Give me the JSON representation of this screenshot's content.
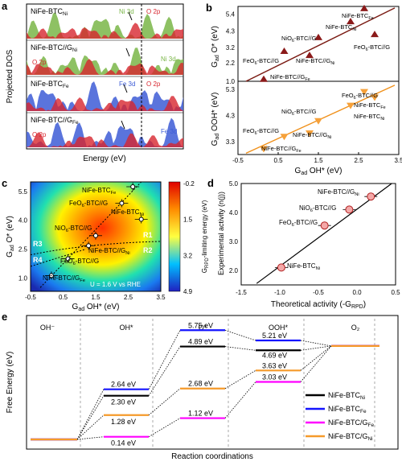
{
  "panels": {
    "a": {
      "letter": "a",
      "ylabel": "Projected DOS",
      "xlabel": "Energy (eV)",
      "rows": [
        {
          "label": "NiFe-BTC",
          "sub": "Ni",
          "tags": [
            {
              "t": "Ni 3d",
              "c": "#7ab648"
            },
            {
              "t": "O 2p",
              "c": "#d7262e"
            }
          ]
        },
        {
          "label": "NiFe-BTC//G",
          "sub": "Ni",
          "tags": [
            {
              "t": "O 2p",
              "c": "#d7262e"
            },
            {
              "t": "Ni 3d",
              "c": "#7ab648"
            }
          ]
        },
        {
          "label": "NiFe-BTC",
          "sub": "Fe",
          "tags": [
            {
              "t": "Fe 3d",
              "c": "#3d5cd6"
            },
            {
              "t": "O 2p",
              "c": "#d7262e"
            }
          ]
        },
        {
          "label": "NiFe-BTC//G",
          "sub": "Fe",
          "tags": [
            {
              "t": "O 2p",
              "c": "#d7262e"
            },
            {
              "t": "Fe 3d",
              "c": "#3d5cd6"
            }
          ]
        }
      ]
    },
    "b": {
      "letter": "b",
      "xlabel": "G",
      "xlabel_sub": "ad",
      "xlabel_tail": " OH* (eV)",
      "ylabel_top": "G",
      "ylabel_top_sub": "ad",
      "ylabel_top_tail": " O* (eV)",
      "ylabel_bot": "G",
      "ylabel_bot_sub": "ad",
      "ylabel_bot_tail": " OOH* (eV)",
      "xticks": [
        "-0.5",
        "0.5",
        "1.5",
        "2.5",
        "3.5"
      ],
      "yticks_top": [
        "1.0",
        "2.2",
        "3.2",
        "4.3",
        "5.4"
      ],
      "yticks_bot": [
        "3.3",
        "4.3",
        "5.3"
      ],
      "labels_top": [
        "NiFe-BTC",
        "Fe",
        "NiFe-BTC",
        "Ni",
        "NiO",
        "6",
        "-BTC//G",
        "FeO",
        "6",
        "-BTC//G",
        "FeO",
        "6",
        "-BTC//G",
        "NiFe-BTC//G",
        "Ni",
        "NiFe-BTC//G",
        "Fe"
      ],
      "top_points": [
        {
          "name": "NiFe-BTC_Fe",
          "x": 2.64,
          "y": 5.75
        },
        {
          "name": "NiFe-BTC_Ni",
          "x": 2.3,
          "y": 4.89
        },
        {
          "name": "FeO6-BTC//G",
          "x": 2.9,
          "y": 4.05
        },
        {
          "name": "NiO6-BTC//G",
          "x": 1.5,
          "y": 3.85
        },
        {
          "name": "FeO6-BTC//G",
          "x": 0.65,
          "y": 2.95
        },
        {
          "name": "NiFe-BTC//G_Ni",
          "x": 1.28,
          "y": 2.68
        },
        {
          "name": "NiFe-BTC//G_Fe",
          "x": 0.14,
          "y": 1.12
        }
      ],
      "bot_points": [
        {
          "name": "NiFe-BTC//G_Fe",
          "x": 0.14,
          "y": 3.03
        },
        {
          "name": "FeO6-BTC//G",
          "x": 0.65,
          "y": 3.5
        },
        {
          "name": "NiFe-BTC//G_Ni",
          "x": 1.28,
          "y": 3.63
        },
        {
          "name": "NiO6-BTC//G",
          "x": 1.5,
          "y": 4.1
        },
        {
          "name": "NiFe-BTC_Fe",
          "x": 2.64,
          "y": 5.21
        },
        {
          "name": "NiFe-BTC_Ni",
          "x": 2.3,
          "y": 4.69
        },
        {
          "name": "FeO6-BTC//G",
          "x": 2.9,
          "y": 5.0
        }
      ]
    },
    "c": {
      "letter": "c",
      "xlabel": "G",
      "xlabel_sub": "ad",
      "xlabel_tail": " OH* (eV)",
      "ylabel": "G",
      "ylabel_sub": "ad",
      "ylabel_tail": " O* (eV)",
      "cbar_label": "G",
      "cbar_label_sub": "RPD",
      "cbar_label_tail": "-limiting energy (eV)",
      "cbar_ticks": [
        "-0.2",
        "1.5",
        "3.2",
        "4.9"
      ],
      "xticks": [
        "-0.5",
        "0.5",
        "1.5",
        "2.5",
        "3.5"
      ],
      "yticks": [
        "1.0",
        "2.5",
        "4.0",
        "5.5"
      ],
      "regions": [
        "R3",
        "R1",
        "R2",
        "R4"
      ],
      "note": "U = 1.6 V vs RHE",
      "point_labels": [
        "NiFe-BTC",
        "Fe",
        "FeO",
        "6",
        "-BTC//G",
        "NiFe-BTC",
        "Ni",
        "NiO",
        "6",
        "-BTC//G",
        "NiFe-BTC//G",
        "Ni",
        "FeO",
        "6",
        "-BTC//G",
        "NiFe-BTC//G",
        "Fe"
      ]
    },
    "d": {
      "letter": "d",
      "xlabel": "Theoretical activity (-G",
      "xlabel_sub": "RPD",
      "xlabel_tail": ")",
      "ylabel": "Experimental activity (n(j))",
      "xticks": [
        "-1.5",
        "-1.0",
        "-0.5",
        "0.0",
        "0.5"
      ],
      "yticks": [
        "2.0",
        "3.0",
        "4.0",
        "5.0"
      ],
      "labels": [
        "NiFe-BTC//G",
        "Ni",
        "NiO",
        "6",
        "-BTC//G",
        "FeO",
        "6",
        "-BTC//G",
        "NiFe-BTC",
        "Ni"
      ]
    },
    "e": {
      "letter": "e",
      "ylabel": "Free Energy (eV)",
      "xlabel": "Reaction coordinations",
      "stages": [
        "OH⁻",
        "OH*",
        "O*",
        "OOH*",
        "O₂"
      ],
      "value_labels": [
        "2.64 eV",
        "2.30 eV",
        "1.28 eV",
        "0.14 eV",
        "5.75 eV",
        "4.89 eV",
        "2.68 eV",
        "1.12 eV",
        "5.21 eV",
        "4.69 eV",
        "3.63 eV",
        "3.03 eV"
      ],
      "legend": [
        {
          "t": "NiFe-BTC",
          "s": "Ni"
        },
        {
          "t": "NiFe-BTC",
          "s": "Fe"
        },
        {
          "t": "NiFe-BTC/G",
          "s": "Fe"
        },
        {
          "t": "NiFe-BTC/G",
          "s": "Ni"
        }
      ]
    }
  },
  "chart_data": [
    {
      "type": "area",
      "title": "",
      "xlabel": "Energy (eV)",
      "ylabel": "Projected DOS",
      "series": [
        {
          "name": "Ni 3d"
        },
        {
          "name": "O 2p"
        },
        {
          "name": "Fe 3d"
        }
      ]
    },
    {
      "type": "scatter",
      "xlabel": "Gad OH* (eV)",
      "ylabel": "Gad O* (eV)",
      "xlim": [
        -0.5,
        3.5
      ],
      "ylim": [
        1.0,
        5.9
      ],
      "series": [
        {
          "name": "Gad O*",
          "points": [
            [
              2.64,
              5.75
            ],
            [
              2.3,
              4.89
            ],
            [
              2.9,
              4.05
            ],
            [
              1.5,
              3.85
            ],
            [
              0.65,
              2.95
            ],
            [
              1.28,
              2.68
            ],
            [
              0.14,
              1.12
            ]
          ]
        }
      ]
    },
    {
      "type": "scatter",
      "xlabel": "Gad OH* (eV)",
      "ylabel": "Gad OOH* (eV)",
      "xlim": [
        -0.5,
        3.5
      ],
      "ylim": [
        2.8,
        5.6
      ],
      "series": [
        {
          "name": "Gad OOH*",
          "points": [
            [
              0.14,
              3.03
            ],
            [
              0.65,
              3.5
            ],
            [
              1.28,
              3.63
            ],
            [
              1.5,
              4.1
            ],
            [
              2.3,
              4.69
            ],
            [
              2.9,
              5.0
            ],
            [
              2.64,
              5.21
            ]
          ]
        }
      ]
    },
    {
      "type": "heatmap",
      "xlabel": "Gad OH* (eV)",
      "ylabel": "Gad O* (eV)",
      "xlim": [
        -0.5,
        3.5
      ],
      "ylim": [
        0.3,
        6.0
      ],
      "colorbar": {
        "label": "GRPD-limiting energy (eV)",
        "range": [
          -0.2,
          4.9
        ],
        "ticks": [
          -0.2,
          1.5,
          3.2,
          4.9
        ]
      },
      "points": [
        [
          0.14,
          1.12
        ],
        [
          0.65,
          2.0
        ],
        [
          1.28,
          2.68
        ],
        [
          1.5,
          3.2
        ],
        [
          2.3,
          4.89
        ],
        [
          2.64,
          5.75
        ],
        [
          2.2,
          5.0
        ]
      ]
    },
    {
      "type": "scatter",
      "xlabel": "Theoretical activity (-GRPD)",
      "ylabel": "Experimental activity (n(j))",
      "xlim": [
        -1.5,
        0.5
      ],
      "ylim": [
        1.5,
        5.0
      ],
      "series": [
        {
          "name": "catalysts",
          "points": [
            [
              -0.98,
              2.1
            ],
            [
              -0.42,
              3.55
            ],
            [
              -0.1,
              4.1
            ],
            [
              0.18,
              4.55
            ]
          ]
        }
      ]
    },
    {
      "type": "line",
      "title": "",
      "xlabel": "Reaction coordinations",
      "ylabel": "Free Energy (eV)",
      "categories": [
        "OH-",
        "OH*",
        "O*",
        "OOH*",
        "O2"
      ],
      "series": [
        {
          "name": "NiFe-BTC_Ni",
          "values": [
            0,
            2.3,
            4.89,
            4.69,
            4.92
          ],
          "color": "#000000"
        },
        {
          "name": "NiFe-BTC_Fe",
          "values": [
            0,
            2.64,
            5.75,
            5.21,
            4.92
          ],
          "color": "#1414ff"
        },
        {
          "name": "NiFe-BTC/G_Fe",
          "values": [
            0,
            0.14,
            1.12,
            3.03,
            4.92
          ],
          "color": "#ff00ff"
        },
        {
          "name": "NiFe-BTC/G_Ni",
          "values": [
            0,
            1.28,
            2.68,
            3.63,
            4.92
          ],
          "color": "#f59a2a"
        }
      ]
    }
  ]
}
